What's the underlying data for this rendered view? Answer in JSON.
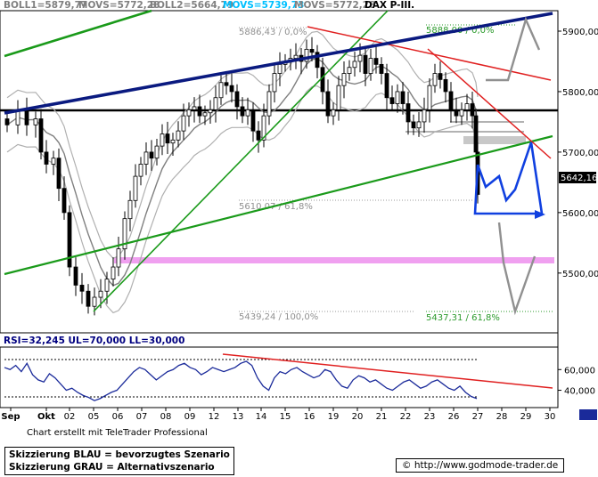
{
  "header": {
    "indicators": [
      {
        "text": "BOLL1=5879,77",
        "color": "#808080"
      },
      {
        "text": "MOVS=5772,28",
        "color": "#808080"
      },
      {
        "text": "BOLL2=5664,79",
        "color": "#808080"
      },
      {
        "text": "MOVS=5739,73",
        "color": "#00c0ff"
      },
      {
        "text": "MOVS=5772,28",
        "color": "#808080"
      },
      {
        "text": "DAX P-III.",
        "color": "#000000"
      }
    ]
  },
  "chart_data": [
    {
      "type": "candlestick",
      "name": "DAX P-III.",
      "ylim": [
        5410,
        5925
      ],
      "y_ticks": [
        "5900,00",
        "5800,00",
        "5700,00",
        "5600,00",
        "5500,00"
      ],
      "x_ticks": [
        "Sep",
        "Okt",
        "02",
        "05",
        "06",
        "07",
        "08",
        "09",
        "12",
        "13",
        "14",
        "15",
        "16",
        "19",
        "20",
        "21",
        "22",
        "23",
        "26",
        "27",
        "28",
        "29",
        "30"
      ],
      "current_price_label": "5642,16",
      "fibonacci_labels": [
        "5886,43 / 0,0%",
        "5888,00 / 0,0%",
        "5610,07 / 61,8%",
        "5439,24 / 100,0%",
        "5437,31 / 61,8%"
      ],
      "horizontal_levels": [
        {
          "value": 5750,
          "color": "#000000"
        },
        {
          "value": 5515,
          "color": "#f0a0f0"
        }
      ],
      "scenarios": {
        "blue": "bevorzugtes Szenario",
        "gray": "Alternativszenario"
      }
    },
    {
      "type": "line",
      "name": "RSI",
      "label": "RSI=32,245  UL=70,000  LL=30,000",
      "ylim": [
        25,
        80
      ],
      "y_ticks": [
        "60,000",
        "40,000"
      ],
      "upper_level": 70,
      "lower_level": 30
    }
  ],
  "colors": {
    "blue_channel": "#0a1a80",
    "green_trend": "#1a9a1a",
    "red_trend": "#e02020",
    "scenario_blue": "#1040e0",
    "scenario_gray": "#909090",
    "rsi_line": "#1a2a9a"
  },
  "legend": {
    "line1": "Skizzierung BLAU = bevorzugtes Szenario",
    "line2": "Skizzierung GRAU = Alternativszenario"
  },
  "footer": {
    "credit": "Chart erstellt mit TeleTrader Professional",
    "url": "© http://www.godmode-trader.de"
  }
}
